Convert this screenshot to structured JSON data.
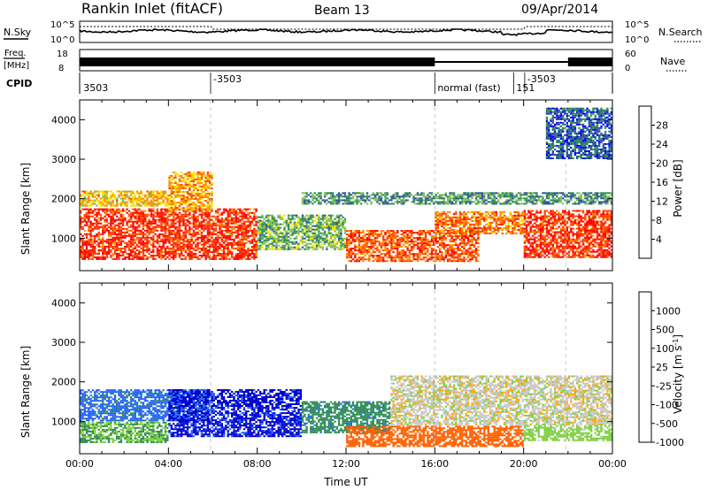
{
  "header": {
    "station": "Rankin Inlet (fitACF)",
    "beam": "Beam 13",
    "date": "09/Apr/2014"
  },
  "strip_labels": {
    "nsky": "N.Sky",
    "nsearch": "N.Search",
    "freq_line1": "Freq.",
    "freq_line2": "[MHz]",
    "nave": "Nave",
    "cpid": "CPID",
    "nsky_ticks": [
      "10^5",
      "10^0"
    ],
    "nsearch_ticks": [
      "10^5",
      "10^0"
    ],
    "freq_ticks": [
      "18",
      "8"
    ],
    "nave_ticks": [
      "60",
      "0"
    ]
  },
  "cpid_labels": [
    {
      "text": "3503",
      "t": 0.05
    },
    {
      "text": "-3503",
      "t": 5.9
    },
    {
      "text": "normal (fast)",
      "t": 16.0
    },
    {
      "text": "151",
      "t": 19.55
    },
    {
      "text": "-3503",
      "t": 20.05
    }
  ],
  "colors": {
    "power": [
      "#0000ff",
      "#2f4f9f",
      "#2e8b57",
      "#7fbf5f",
      "#f5e000",
      "#ff8c00",
      "#ff4500",
      "#ff0000"
    ],
    "velocity": [
      "#0000cd",
      "#2060ff",
      "#2e8b57",
      "#7fcf3f",
      "#c8c8c8",
      "#ffa500",
      "#ff6000",
      "#ff0000"
    ]
  },
  "chart_data": [
    {
      "type": "heatmap",
      "panel": "power",
      "xlabel": "",
      "ylabel": "Slant Range [km]",
      "xlim": [
        "00:00",
        "24:00"
      ],
      "ylim": [
        180,
        4500
      ],
      "yticks": [
        "1000",
        "2000",
        "3000",
        "4000"
      ],
      "colorbar": {
        "label": "Power [dB]",
        "ticks": [
          "4",
          "8",
          "12",
          "16",
          "20",
          "24",
          "28"
        ],
        "range": [
          0,
          30
        ]
      },
      "value_bands": [
        {
          "t0": 0,
          "t1": 8,
          "r0": 450,
          "r1": 1750,
          "level": 26
        },
        {
          "t0": 0,
          "t1": 4,
          "r0": 1800,
          "r1": 2200,
          "level": 18
        },
        {
          "t0": 4,
          "t1": 6,
          "r0": 1700,
          "r1": 2700,
          "level": 20
        },
        {
          "t0": 8,
          "t1": 12,
          "r0": 700,
          "r1": 1600,
          "level": 12
        },
        {
          "t0": 12,
          "t1": 18,
          "r0": 400,
          "r1": 1200,
          "level": 24
        },
        {
          "t0": 16,
          "t1": 20,
          "r0": 1100,
          "r1": 1700,
          "level": 22
        },
        {
          "t0": 10,
          "t1": 24,
          "r0": 1850,
          "r1": 2150,
          "level": 10
        },
        {
          "t0": 20,
          "t1": 24,
          "r0": 500,
          "r1": 1700,
          "level": 26
        },
        {
          "t0": 21,
          "t1": 24,
          "r0": 3000,
          "r1": 4300,
          "level": 6
        }
      ]
    },
    {
      "type": "heatmap",
      "panel": "velocity",
      "xlabel": "Time UT",
      "ylabel": "Slant Range [km]",
      "xlim": [
        "00:00",
        "24:00"
      ],
      "xticks": [
        "00:00",
        "04:00",
        "08:00",
        "12:00",
        "16:00",
        "20:00",
        "00:00"
      ],
      "ylim": [
        180,
        4500
      ],
      "yticks": [
        "1000",
        "2000",
        "3000",
        "4000"
      ],
      "colorbar": {
        "label": "Velocity [m s^-1]",
        "ticks": [
          "1000",
          "500",
          "100",
          "25",
          "-25",
          "-100",
          "-500",
          "-1000"
        ]
      },
      "value_bands": [
        {
          "t0": 0,
          "t1": 4,
          "r0": 450,
          "r1": 1000,
          "level": 100
        },
        {
          "t0": 0,
          "t1": 6,
          "r0": 1000,
          "r1": 1800,
          "level": 300
        },
        {
          "t0": 4,
          "t1": 10,
          "r0": 600,
          "r1": 1800,
          "level": 600
        },
        {
          "t0": 10,
          "t1": 14,
          "r0": 700,
          "r1": 1500,
          "level": 200
        },
        {
          "t0": 12,
          "t1": 20,
          "r0": 350,
          "r1": 900,
          "level": -150
        },
        {
          "t0": 14,
          "t1": 24,
          "r0": 900,
          "r1": 2150,
          "level": 0
        },
        {
          "t0": 20,
          "t1": 24,
          "r0": 500,
          "r1": 900,
          "level": 60
        }
      ]
    }
  ]
}
